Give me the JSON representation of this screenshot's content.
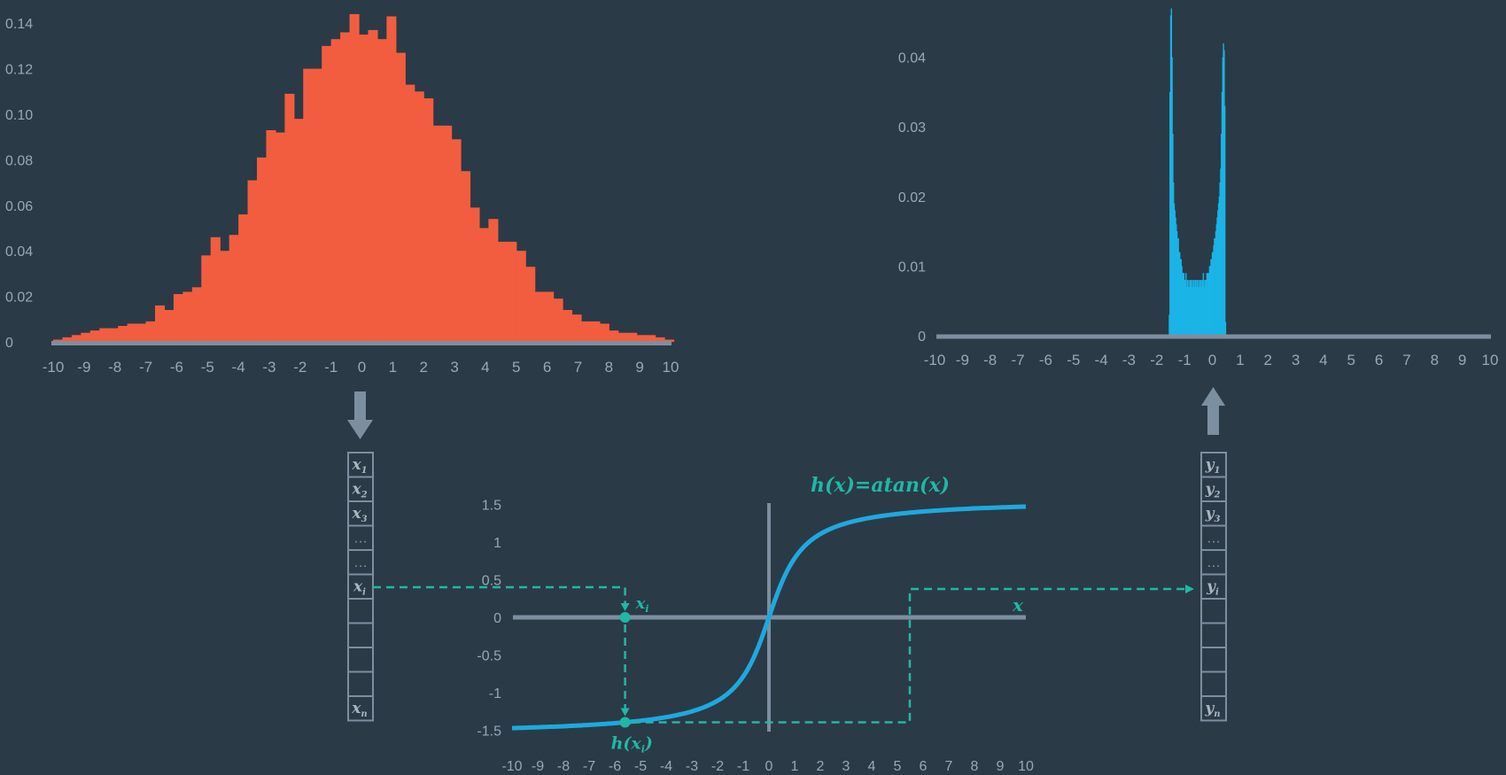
{
  "colors": {
    "background": "#2b3a47",
    "axis": "#7c8fa0",
    "tick_text": "#98a8b6",
    "input_hist": "#f25d3f",
    "output_hist": "#1ab4e6",
    "curve": "#1ea9df",
    "annotation": "#1fb8a6",
    "vector_border": "#7c8fa0"
  },
  "chart_data": [
    {
      "type": "bar",
      "xlim": [
        -10,
        10
      ],
      "ylim": [
        0,
        0.14
      ],
      "x_ticks": [
        "-10",
        "-9",
        "-8",
        "-7",
        "-6",
        "-5",
        "-4",
        "-3",
        "-2",
        "-1",
        "0",
        "1",
        "2",
        "3",
        "4",
        "5",
        "6",
        "7",
        "8",
        "9",
        "10"
      ],
      "y_ticks": [
        "0",
        "0.02",
        "0.04",
        "0.06",
        "0.08",
        "0.10",
        "0.12",
        "0.14"
      ],
      "bins": {
        "start": -10,
        "width": 0.3
      },
      "values": [
        0.001,
        0.002,
        0.003,
        0.004,
        0.005,
        0.006,
        0.006,
        0.007,
        0.008,
        0.008,
        0.009,
        0.016,
        0.014,
        0.021,
        0.022,
        0.024,
        0.038,
        0.046,
        0.04,
        0.047,
        0.056,
        0.071,
        0.081,
        0.093,
        0.092,
        0.109,
        0.098,
        0.12,
        0.12,
        0.13,
        0.133,
        0.136,
        0.144,
        0.135,
        0.137,
        0.133,
        0.143,
        0.127,
        0.113,
        0.11,
        0.107,
        0.095,
        0.095,
        0.089,
        0.075,
        0.059,
        0.05,
        0.054,
        0.044,
        0.044,
        0.04,
        0.033,
        0.022,
        0.022,
        0.019,
        0.014,
        0.012,
        0.009,
        0.009,
        0.008,
        0.005,
        0.004,
        0.004,
        0.003,
        0.003,
        0.002,
        0.001
      ],
      "grid": false
    },
    {
      "type": "bar",
      "xlim": [
        -10,
        10
      ],
      "ylim": [
        0,
        0.045
      ],
      "x_ticks": [
        "-10",
        "-9",
        "-8",
        "-7",
        "-6",
        "-5",
        "-4",
        "-3",
        "-2",
        "-1",
        "0",
        "1",
        "2",
        "3",
        "4",
        "5",
        "6",
        "7",
        "8",
        "9",
        "10"
      ],
      "y_ticks": [
        "0",
        "0.01",
        "0.02",
        "0.03",
        "0.04"
      ],
      "bins": {
        "start": -1.57,
        "width": 0.025
      },
      "values": [
        0.003,
        0.035,
        0.046,
        0.047,
        0.04,
        0.029,
        0.022,
        0.019,
        0.018,
        0.017,
        0.016,
        0.015,
        0.014,
        0.014,
        0.012,
        0.012,
        0.011,
        0.011,
        0.01,
        0.009,
        0.009,
        0.009,
        0.008,
        0.008,
        0.009,
        0.007,
        0.008,
        0.007,
        0.008,
        0.007,
        0.008,
        0.008,
        0.007,
        0.008,
        0.007,
        0.008,
        0.007,
        0.008,
        0.008,
        0.007,
        0.008,
        0.007,
        0.008,
        0.007,
        0.008,
        0.008,
        0.007,
        0.008,
        0.008,
        0.009,
        0.007,
        0.008,
        0.008,
        0.008,
        0.009,
        0.009,
        0.009,
        0.009,
        0.01,
        0.01,
        0.011,
        0.011,
        0.012,
        0.012,
        0.013,
        0.014,
        0.014,
        0.015,
        0.016,
        0.017,
        0.018,
        0.019,
        0.02,
        0.022,
        0.024,
        0.029,
        0.035,
        0.04,
        0.042,
        0.041,
        0.033,
        0.002
      ],
      "grid": false
    },
    {
      "type": "line",
      "function": "atan",
      "xlim": [
        -10,
        10
      ],
      "ylim": [
        -1.5,
        1.5
      ],
      "x_ticks": [
        "-10",
        "-9",
        "-8",
        "-7",
        "-6",
        "-5",
        "-4",
        "-3",
        "-2",
        "-1",
        "0",
        "1",
        "2",
        "3",
        "4",
        "5",
        "6",
        "7",
        "8",
        "9",
        "10"
      ],
      "y_ticks": [
        "1.5",
        "1",
        "0.5",
        "0",
        "-0.5",
        "-1",
        "-1.5"
      ],
      "sample_point_x": -5.6,
      "curve_label": "h(x)=atan(x)",
      "x_axis_label": "x",
      "point_label": "x",
      "point_label_sub": "i",
      "value_label": "h(x",
      "value_label_sub": "i",
      "value_label_close": ")",
      "grid": false
    }
  ],
  "input_vector": {
    "cells": [
      {
        "letter": "x",
        "sub": "1"
      },
      {
        "letter": "x",
        "sub": "2"
      },
      {
        "letter": "x",
        "sub": "3"
      },
      {
        "text": "…"
      },
      {
        "text": "…"
      },
      {
        "letter": "x",
        "sub": "i"
      },
      {},
      {},
      {},
      {},
      {
        "letter": "x",
        "sub": "n"
      }
    ]
  },
  "output_vector": {
    "cells": [
      {
        "letter": "y",
        "sub": "1"
      },
      {
        "letter": "y",
        "sub": "2"
      },
      {
        "letter": "y",
        "sub": "3"
      },
      {
        "text": "…"
      },
      {
        "text": "…"
      },
      {
        "letter": "y",
        "sub": "i"
      },
      {},
      {},
      {},
      {},
      {
        "letter": "y",
        "sub": "n"
      }
    ]
  }
}
